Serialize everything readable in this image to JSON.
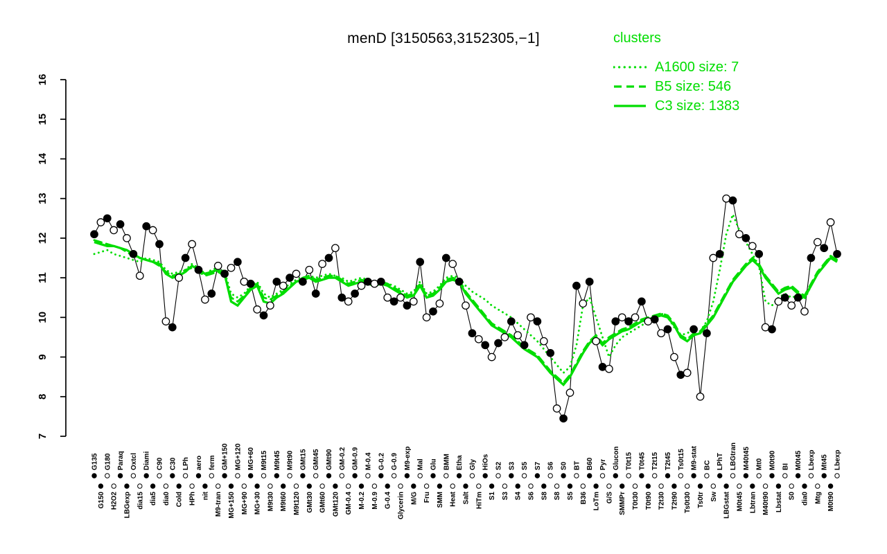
{
  "title": "menD [3150563,3152305,−1]",
  "legend": {
    "title": "clusters"
  },
  "colors": {
    "cluster": "#00DD00",
    "gene": "#000000",
    "background": "#FFFFFF"
  },
  "chart_data": {
    "type": "line",
    "title": "menD [3150563,3152305,−1]",
    "xlabel": "",
    "ylabel": "",
    "ylim": [
      7,
      16
    ],
    "yticks": [
      7,
      8,
      9,
      10,
      11,
      12,
      13,
      14,
      15,
      16
    ],
    "grid": false,
    "legend_position": "top-right",
    "categories": [
      "G135",
      "G150",
      "G180",
      "H2O2",
      "Paraq",
      "LBGexp",
      "Oxtcl",
      "dia15",
      "Diami",
      "dia5",
      "C90",
      "dia0",
      "C30",
      "Cold",
      "LPh",
      "HPh",
      "aero",
      "nit",
      "ferm",
      "M9-tran",
      "GM+150",
      "MG+150",
      "MG+120",
      "MG+90",
      "MG+60",
      "MG+30",
      "M9t15",
      "M9t30",
      "M9t45",
      "M9t60",
      "M9t90",
      "M9t120",
      "GMt15",
      "GMt30",
      "GMt45",
      "GMt60",
      "GMt90",
      "GMt120",
      "GM-0.2",
      "GM-0.4",
      "GM-0.9",
      "M-0.2",
      "M-0.4",
      "M-0.9",
      "G-0.2",
      "G-0.4",
      "G-0.9",
      "Glycerin",
      "M9-exp",
      "M/G",
      "Mal",
      "Fru",
      "Glu",
      "SMM",
      "BMM",
      "Heat",
      "Etha",
      "Salt",
      "Gly",
      "HiTm",
      "HiOs",
      "S1",
      "S2",
      "S3",
      "S3",
      "S4",
      "S5",
      "S6",
      "S7",
      "S8",
      "S6",
      "S8",
      "S0",
      "S5",
      "BT",
      "B36",
      "B60",
      "LoTm",
      "Pyr",
      "G/S",
      "Glucon",
      "SMMPr",
      "T0t15",
      "T0t30",
      "T0t45",
      "T0t90",
      "T2t15",
      "T2t30",
      "T2t45",
      "T2t90",
      "Ts0t15",
      "Ts0t30",
      "M9-stat",
      "Ts0tr",
      "BC",
      "Sw",
      "LPhT",
      "LBGstat",
      "LBGtran",
      "M0t45",
      "M40t45",
      "Lbtran",
      "Mt0",
      "M40t90",
      "M0t90",
      "Lbstat",
      "BI",
      "S0",
      "M0t45",
      "dia0",
      "Lbexp",
      "Mtg",
      "Mt45",
      "M0t90",
      "Lbexp"
    ],
    "series": [
      {
        "name": "menD",
        "role": "gene",
        "color": "#000000",
        "style": "line-markers",
        "values": [
          12.1,
          12.4,
          12.5,
          12.2,
          12.35,
          12.0,
          11.6,
          11.05,
          12.3,
          12.2,
          11.85,
          9.9,
          9.75,
          11.0,
          11.5,
          11.85,
          11.2,
          10.45,
          10.6,
          11.3,
          11.1,
          11.25,
          11.4,
          10.9,
          10.85,
          10.2,
          10.05,
          10.3,
          10.9,
          10.8,
          11.0,
          11.1,
          10.9,
          11.2,
          10.6,
          11.35,
          11.5,
          11.75,
          10.5,
          10.4,
          10.6,
          10.8,
          10.9,
          10.85,
          10.9,
          10.5,
          10.4,
          10.5,
          10.3,
          10.4,
          11.4,
          10.0,
          10.15,
          10.35,
          11.5,
          11.35,
          10.9,
          10.3,
          9.6,
          9.45,
          9.3,
          9.0,
          9.35,
          9.5,
          9.9,
          9.55,
          9.3,
          10.0,
          9.9,
          9.4,
          9.1,
          7.7,
          7.45,
          8.1,
          10.8,
          10.35,
          10.9,
          9.4,
          8.75,
          8.7,
          9.9,
          10.0,
          9.9,
          10.0,
          10.4,
          9.9,
          9.95,
          9.6,
          9.7,
          9.0,
          8.55,
          8.6,
          9.7,
          8.0,
          9.6,
          11.5,
          11.6,
          13.0,
          12.95,
          12.1,
          12.0,
          11.8,
          11.6,
          9.75,
          9.7,
          10.4,
          10.5,
          10.3,
          10.5,
          10.15,
          11.5,
          11.9,
          11.75,
          12.4,
          11.6
        ]
      },
      {
        "name": "A1600 size: 7",
        "role": "cluster",
        "cluster": "A1600",
        "size": 7,
        "color": "#00DD00",
        "style": "dotted",
        "values": [
          11.6,
          11.65,
          11.7,
          11.6,
          11.55,
          11.5,
          11.45,
          11.4,
          11.5,
          11.45,
          11.4,
          11.2,
          11.1,
          11.15,
          11.2,
          11.35,
          11.25,
          11.1,
          11.2,
          11.25,
          11.15,
          10.6,
          10.5,
          10.6,
          10.8,
          10.9,
          10.6,
          10.5,
          10.6,
          10.7,
          10.85,
          10.95,
          11.0,
          11.05,
          11.0,
          11.05,
          11.1,
          11.05,
          11.0,
          10.9,
          10.95,
          11.0,
          10.95,
          10.9,
          10.9,
          10.85,
          10.8,
          10.7,
          10.6,
          10.65,
          10.9,
          10.6,
          10.65,
          10.8,
          11.0,
          11.05,
          11.0,
          10.8,
          10.65,
          10.55,
          10.45,
          10.3,
          10.2,
          10.1,
          10.0,
          9.85,
          9.7,
          9.55,
          9.4,
          9.2,
          9.0,
          8.8,
          8.6,
          8.75,
          9.3,
          10.3,
          10.5,
          10.0,
          9.5,
          9.0,
          9.3,
          9.5,
          9.6,
          9.7,
          9.8,
          9.9,
          10.0,
          10.1,
          10.0,
          9.75,
          9.55,
          9.6,
          9.7,
          9.65,
          9.9,
          10.4,
          11.2,
          12.1,
          12.6,
          12.2,
          11.9,
          11.6,
          11.3,
          10.4,
          10.3,
          10.5,
          10.6,
          10.5,
          10.55,
          10.45,
          10.8,
          11.1,
          11.3,
          11.55,
          11.5
        ]
      },
      {
        "name": "B5 size: 546",
        "role": "cluster",
        "cluster": "B5",
        "size": 546,
        "color": "#00DD00",
        "style": "dashed",
        "values": [
          11.95,
          11.9,
          11.85,
          11.8,
          11.75,
          11.65,
          11.55,
          11.5,
          11.45,
          11.4,
          11.3,
          11.15,
          11.05,
          11.1,
          11.2,
          11.25,
          11.15,
          11.05,
          11.1,
          11.15,
          11.05,
          10.5,
          10.4,
          10.55,
          10.75,
          10.85,
          10.5,
          10.45,
          10.55,
          10.65,
          10.8,
          10.9,
          11.0,
          11.05,
          10.95,
          11.0,
          11.05,
          11.05,
          10.95,
          10.85,
          10.9,
          10.95,
          10.9,
          10.85,
          10.9,
          10.85,
          10.75,
          10.65,
          10.55,
          10.6,
          10.85,
          10.55,
          10.6,
          10.75,
          10.95,
          11.0,
          10.95,
          10.65,
          10.45,
          10.25,
          10.05,
          9.85,
          9.75,
          9.65,
          9.55,
          9.4,
          9.25,
          9.15,
          9.05,
          8.85,
          8.65,
          8.5,
          8.35,
          8.55,
          8.85,
          9.15,
          9.4,
          9.55,
          9.35,
          9.5,
          9.6,
          9.7,
          9.75,
          9.85,
          9.95,
          10.0,
          10.05,
          10.1,
          10.05,
          9.85,
          9.55,
          9.45,
          9.6,
          9.65,
          9.85,
          10.05,
          10.35,
          10.65,
          10.95,
          11.15,
          11.35,
          11.5,
          11.35,
          11.05,
          10.85,
          10.65,
          10.75,
          10.8,
          10.65,
          10.55,
          10.85,
          11.15,
          11.35,
          11.55,
          11.45
        ]
      },
      {
        "name": "C3 size: 1383",
        "role": "cluster",
        "cluster": "C3",
        "size": 1383,
        "color": "#00DD00",
        "style": "solid",
        "values": [
          11.9,
          11.85,
          11.8,
          11.8,
          11.75,
          11.7,
          11.6,
          11.5,
          11.45,
          11.4,
          11.35,
          11.1,
          11.0,
          11.05,
          11.15,
          11.3,
          11.2,
          11.1,
          11.15,
          11.2,
          11.1,
          10.4,
          10.3,
          10.5,
          10.7,
          10.8,
          10.4,
          10.35,
          10.5,
          10.6,
          10.75,
          10.9,
          10.95,
          11.0,
          10.9,
          10.95,
          11.0,
          11.0,
          10.9,
          10.8,
          10.85,
          10.9,
          10.85,
          10.8,
          10.85,
          10.8,
          10.7,
          10.6,
          10.5,
          10.55,
          10.8,
          10.5,
          10.55,
          10.7,
          10.9,
          10.95,
          10.9,
          10.6,
          10.4,
          10.2,
          10.0,
          9.8,
          9.7,
          9.6,
          9.5,
          9.35,
          9.2,
          9.1,
          9.0,
          8.8,
          8.6,
          8.45,
          8.3,
          8.5,
          8.8,
          9.1,
          9.35,
          9.5,
          9.3,
          9.45,
          9.55,
          9.65,
          9.7,
          9.8,
          9.9,
          9.95,
          10.0,
          10.05,
          10.0,
          9.8,
          9.5,
          9.4,
          9.55,
          9.6,
          9.8,
          10.0,
          10.3,
          10.6,
          10.9,
          11.1,
          11.3,
          11.45,
          11.3,
          11.0,
          10.8,
          10.6,
          10.7,
          10.75,
          10.6,
          10.5,
          10.8,
          11.1,
          11.3,
          11.5,
          11.4
        ]
      }
    ]
  }
}
